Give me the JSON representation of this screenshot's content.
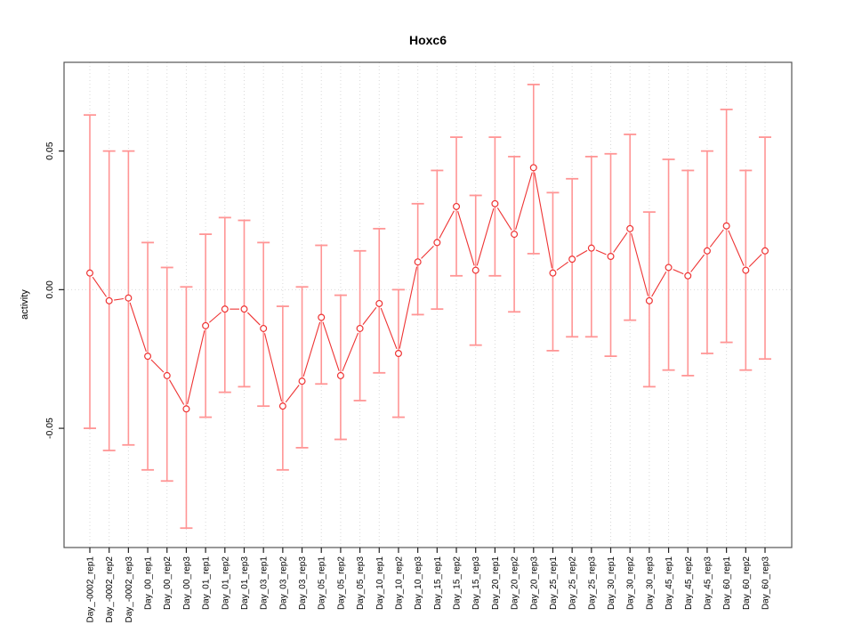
{
  "chart_data": {
    "type": "line",
    "title": "Hoxc6",
    "xlabel": "",
    "ylabel": "activity",
    "ylim": [
      -0.093,
      0.082
    ],
    "yticks": [
      0.05,
      0.0,
      -0.05
    ],
    "grid": "dotted vertical line at every category; dotted horizontal line at y=0",
    "legend": "none",
    "point_style": "open-circle",
    "error_bars_visible": true,
    "categories": [
      "Day_-0002_rep1",
      "Day_-0002_rep2",
      "Day_-0002_rep3",
      "Day_00_rep1",
      "Day_00_rep2",
      "Day_00_rep3",
      "Day_01_rep1",
      "Day_01_rep2",
      "Day_01_rep3",
      "Day_03_rep1",
      "Day_03_rep2",
      "Day_03_rep3",
      "Day_05_rep1",
      "Day_05_rep2",
      "Day_05_rep3",
      "Day_10_rep1",
      "Day_10_rep2",
      "Day_10_rep3",
      "Day_15_rep1",
      "Day_15_rep2",
      "Day_15_rep3",
      "Day_20_rep1",
      "Day_20_rep2",
      "Day_20_rep3",
      "Day_25_rep1",
      "Day_25_rep2",
      "Day_25_rep3",
      "Day_30_rep1",
      "Day_30_rep2",
      "Day_30_rep3",
      "Day_45_rep1",
      "Day_45_rep2",
      "Day_45_rep3",
      "Day_60_rep1",
      "Day_60_rep2",
      "Day_60_rep3"
    ],
    "series": [
      {
        "name": "activity",
        "values": [
          0.006,
          -0.004,
          -0.003,
          -0.024,
          -0.031,
          -0.043,
          -0.013,
          -0.007,
          -0.007,
          -0.014,
          -0.042,
          -0.033,
          -0.01,
          -0.031,
          -0.014,
          -0.005,
          -0.023,
          0.01,
          0.017,
          0.03,
          0.007,
          0.031,
          0.02,
          0.044,
          0.006,
          0.011,
          0.015,
          0.012,
          0.022,
          -0.004,
          0.008,
          0.005,
          0.014,
          0.023,
          0.007,
          0.014
        ],
        "error_low": [
          -0.05,
          -0.058,
          -0.056,
          -0.065,
          -0.069,
          -0.086,
          -0.046,
          -0.037,
          -0.035,
          -0.042,
          -0.065,
          -0.057,
          -0.034,
          -0.054,
          -0.04,
          -0.03,
          -0.046,
          -0.009,
          -0.007,
          0.005,
          -0.02,
          0.005,
          -0.008,
          0.013,
          -0.022,
          -0.017,
          -0.017,
          -0.024,
          -0.011,
          -0.035,
          -0.029,
          -0.031,
          -0.023,
          -0.019,
          -0.029,
          -0.025
        ],
        "error_high": [
          0.063,
          0.05,
          0.05,
          0.017,
          0.008,
          0.001,
          0.02,
          0.026,
          0.025,
          0.017,
          -0.006,
          0.001,
          0.016,
          -0.002,
          0.014,
          0.022,
          0.0,
          0.031,
          0.043,
          0.055,
          0.034,
          0.055,
          0.048,
          0.074,
          0.035,
          0.04,
          0.048,
          0.049,
          0.056,
          0.028,
          0.047,
          0.043,
          0.05,
          0.065,
          0.043,
          0.055
        ]
      }
    ],
    "colors": {
      "point": "#ee3333",
      "connector": "#ee3333",
      "error_bar": "#ff9595",
      "grid": "#d9d9d9",
      "zero_line": "#d9d9d9",
      "frame": "#555555",
      "tick": "#222222",
      "text": "#000000",
      "background": "#ffffff"
    }
  }
}
